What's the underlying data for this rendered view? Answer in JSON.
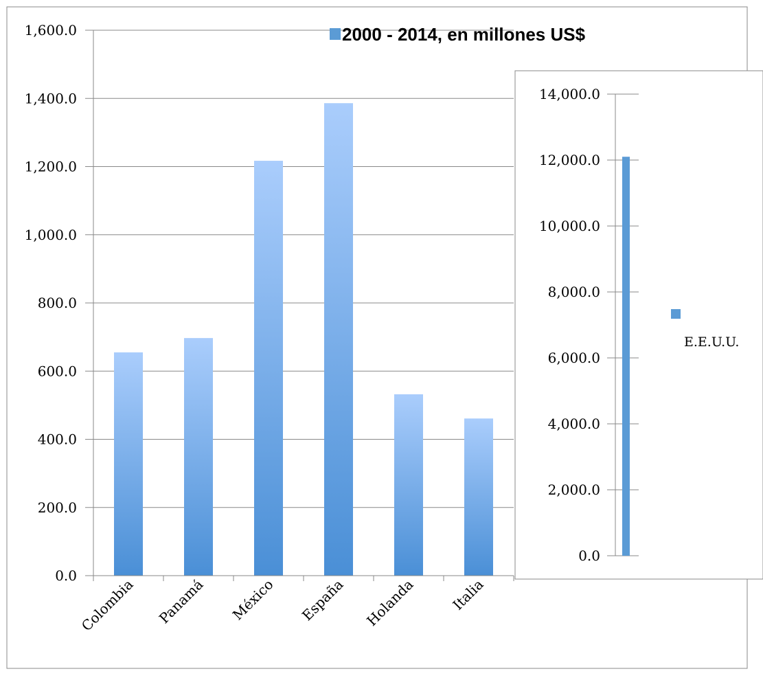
{
  "colors": {
    "bar_top": "#aacdfc",
    "bar_bottom": "#4a8fd6",
    "legend_swatch": "#5b9bd5",
    "grid": "#888888",
    "frame": "#888888"
  },
  "chart_data": [
    {
      "type": "bar",
      "title": "",
      "legend": {
        "label": "2000 - 2014, en millones US$",
        "position": "top-right"
      },
      "categories": [
        "Colombia",
        "Panamá",
        "México",
        "España",
        "Holanda",
        "Italia"
      ],
      "series": [
        {
          "name": "2000 - 2014, en millones US$",
          "values": [
            655,
            697,
            1217,
            1386,
            532,
            461
          ]
        }
      ],
      "xlabel": "",
      "ylabel": "",
      "ylim": [
        0,
        1600
      ],
      "yticks": [
        "0.0",
        "200.0",
        "400.0",
        "600.0",
        "800.0",
        "1,000.0",
        "1,200.0",
        "1,400.0",
        "1,600.0"
      ],
      "grid": true
    },
    {
      "type": "bar",
      "title": "",
      "legend": {
        "label": "E.E.U.U.",
        "position": "right"
      },
      "categories": [
        ""
      ],
      "series": [
        {
          "name": "E.E.U.U.",
          "values": [
            12100
          ]
        }
      ],
      "xlabel": "",
      "ylabel": "",
      "ylim": [
        0,
        14000
      ],
      "yticks": [
        "0.0",
        "2,000.0",
        "4,000.0",
        "6,000.0",
        "8,000.0",
        "10,000.0",
        "12,000.0",
        "14,000.0"
      ],
      "grid": true
    }
  ]
}
